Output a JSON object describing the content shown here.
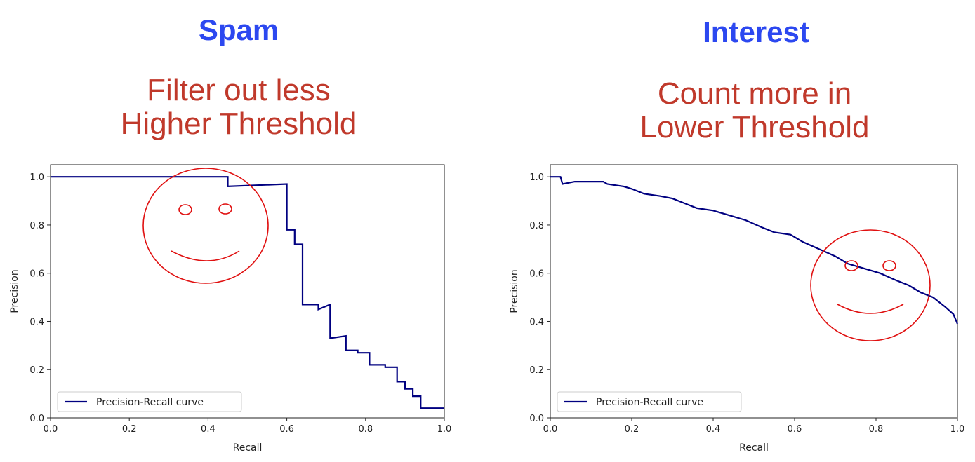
{
  "colors": {
    "title": "#2c48f0",
    "subtitle": "#c0392b",
    "curve": "#000080",
    "annotation": "#e01010",
    "axis": "#222222"
  },
  "panels": [
    {
      "title": "Spam",
      "subtitle_lines": [
        "Filter out less",
        "Higher Threshold"
      ],
      "annotation": "smiley-face"
    },
    {
      "title": "Interest",
      "subtitle_lines": [
        "Count more in",
        "Lower Threshold"
      ],
      "annotation": "smiley-face"
    }
  ],
  "chart_data": [
    {
      "type": "line",
      "title": "",
      "xlabel": "Recall",
      "ylabel": "Precision",
      "xlim": [
        0.0,
        1.0
      ],
      "ylim": [
        0.0,
        1.05
      ],
      "xticks": [
        "0.0",
        "0.2",
        "0.4",
        "0.6",
        "0.8",
        "1.0"
      ],
      "yticks": [
        "0.0",
        "0.2",
        "0.4",
        "0.6",
        "0.8",
        "1.0"
      ],
      "grid": false,
      "legend": "lower-left",
      "series": [
        {
          "name": "Precision-Recall curve",
          "points": [
            [
              0.0,
              1.0
            ],
            [
              0.45,
              1.0
            ],
            [
              0.45,
              0.96
            ],
            [
              0.6,
              0.97
            ],
            [
              0.6,
              0.78
            ],
            [
              0.62,
              0.78
            ],
            [
              0.62,
              0.72
            ],
            [
              0.64,
              0.72
            ],
            [
              0.64,
              0.47
            ],
            [
              0.68,
              0.47
            ],
            [
              0.68,
              0.45
            ],
            [
              0.71,
              0.47
            ],
            [
              0.71,
              0.33
            ],
            [
              0.75,
              0.34
            ],
            [
              0.75,
              0.28
            ],
            [
              0.78,
              0.28
            ],
            [
              0.78,
              0.27
            ],
            [
              0.81,
              0.27
            ],
            [
              0.81,
              0.22
            ],
            [
              0.85,
              0.22
            ],
            [
              0.85,
              0.21
            ],
            [
              0.88,
              0.21
            ],
            [
              0.88,
              0.15
            ],
            [
              0.9,
              0.15
            ],
            [
              0.9,
              0.12
            ],
            [
              0.92,
              0.12
            ],
            [
              0.92,
              0.09
            ],
            [
              0.94,
              0.09
            ],
            [
              0.94,
              0.04
            ],
            [
              0.97,
              0.04
            ],
            [
              1.0,
              0.04
            ]
          ]
        }
      ]
    },
    {
      "type": "line",
      "title": "",
      "xlabel": "Recall",
      "ylabel": "Precision",
      "xlim": [
        0.0,
        1.0
      ],
      "ylim": [
        0.0,
        1.05
      ],
      "xticks": [
        "0.0",
        "0.2",
        "0.4",
        "0.6",
        "0.8",
        "1.0"
      ],
      "yticks": [
        "0.0",
        "0.2",
        "0.4",
        "0.6",
        "0.8",
        "1.0"
      ],
      "grid": false,
      "legend": "lower-left",
      "series": [
        {
          "name": "Precision-Recall curve",
          "points": [
            [
              0.0,
              1.0
            ],
            [
              0.025,
              1.0
            ],
            [
              0.03,
              0.97
            ],
            [
              0.06,
              0.98
            ],
            [
              0.08,
              0.98
            ],
            [
              0.13,
              0.98
            ],
            [
              0.14,
              0.97
            ],
            [
              0.18,
              0.96
            ],
            [
              0.2,
              0.95
            ],
            [
              0.23,
              0.93
            ],
            [
              0.27,
              0.92
            ],
            [
              0.3,
              0.91
            ],
            [
              0.33,
              0.89
            ],
            [
              0.36,
              0.87
            ],
            [
              0.4,
              0.86
            ],
            [
              0.44,
              0.84
            ],
            [
              0.48,
              0.82
            ],
            [
              0.52,
              0.79
            ],
            [
              0.55,
              0.77
            ],
            [
              0.59,
              0.76
            ],
            [
              0.62,
              0.73
            ],
            [
              0.66,
              0.7
            ],
            [
              0.7,
              0.67
            ],
            [
              0.73,
              0.64
            ],
            [
              0.77,
              0.62
            ],
            [
              0.81,
              0.6
            ],
            [
              0.85,
              0.57
            ],
            [
              0.88,
              0.55
            ],
            [
              0.91,
              0.52
            ],
            [
              0.94,
              0.5
            ],
            [
              0.97,
              0.46
            ],
            [
              0.99,
              0.43
            ],
            [
              1.0,
              0.39
            ]
          ]
        }
      ]
    }
  ]
}
